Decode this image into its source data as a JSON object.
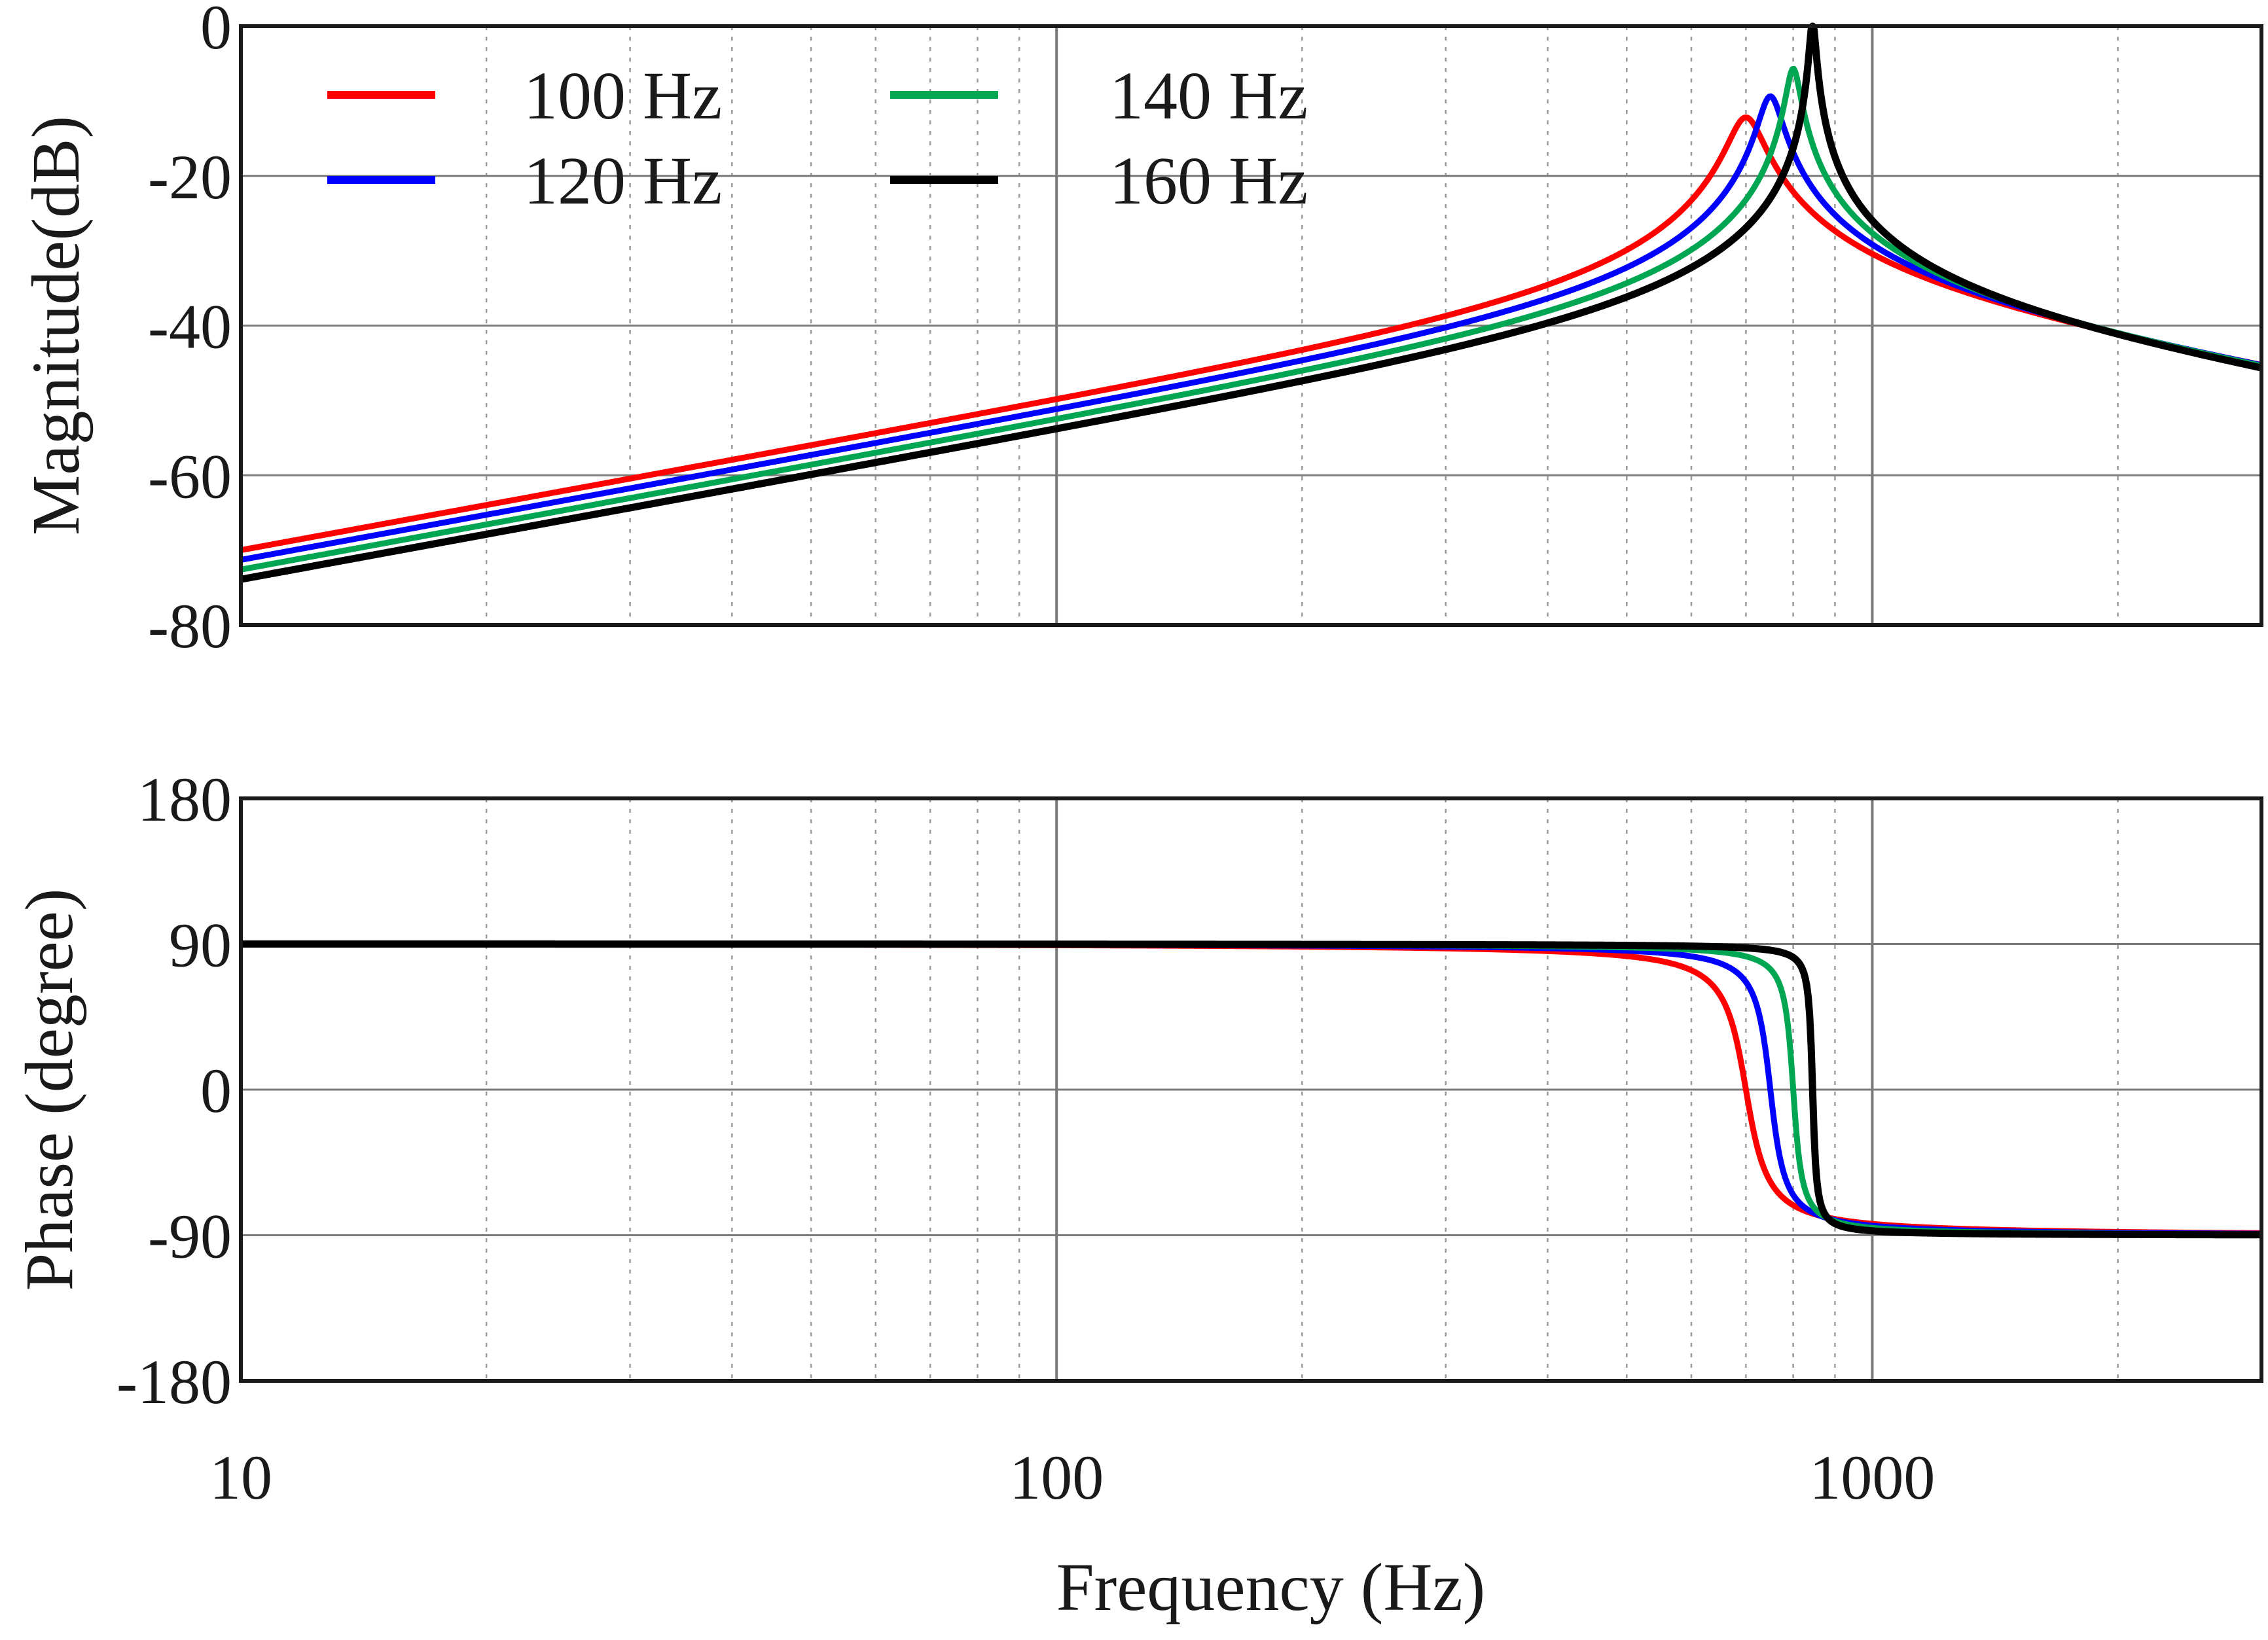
{
  "chart_data": [
    {
      "type": "line",
      "panel": "magnitude",
      "ylabel": "Magnitude(dB)",
      "xscale": "log",
      "xlim": [
        10,
        3000
      ],
      "ylim": [
        -80,
        0
      ],
      "yticks": [
        0,
        -20,
        -40,
        -60,
        -80
      ],
      "ytick_labels": [
        "0",
        "-20",
        "-40",
        "-60",
        "-80"
      ],
      "grid": true,
      "legend_position": "top-left",
      "series": [
        {
          "name": "100 Hz",
          "color": "#ff0000",
          "fr": 700,
          "zeta": 0.045,
          "gain_at_10hz_db": -70.0
        },
        {
          "name": "120 Hz",
          "color": "#0000ff",
          "fr": 750,
          "zeta": 0.03,
          "gain_at_10hz_db": -71.3
        },
        {
          "name": "140 Hz",
          "color": "#00a651",
          "fr": 800,
          "zeta": 0.018,
          "gain_at_10hz_db": -72.6
        },
        {
          "name": "160 Hz",
          "color": "#000000",
          "fr": 845,
          "zeta": 0.008,
          "gain_at_10hz_db": -73.9
        }
      ]
    },
    {
      "type": "line",
      "panel": "phase",
      "ylabel": "Phase (degree)",
      "xlabel": "Frequency (Hz)",
      "xscale": "log",
      "xlim": [
        10,
        3000
      ],
      "ylim": [
        -180,
        180
      ],
      "yticks": [
        180,
        90,
        0,
        -90,
        -180
      ],
      "ytick_labels": [
        "180",
        "90",
        "0",
        "-90",
        "-180"
      ],
      "xticks": [
        10,
        100,
        1000
      ],
      "xtick_labels": [
        "10",
        "100",
        "1000"
      ],
      "grid": true,
      "series": [
        {
          "name": "100 Hz",
          "color": "#ff0000",
          "fr": 700,
          "zeta": 0.045
        },
        {
          "name": "120 Hz",
          "color": "#0000ff",
          "fr": 750,
          "zeta": 0.03
        },
        {
          "name": "140 Hz",
          "color": "#00a651",
          "fr": 800,
          "zeta": 0.018
        },
        {
          "name": "160 Hz",
          "color": "#000000",
          "fr": 845,
          "zeta": 0.008
        }
      ]
    }
  ]
}
